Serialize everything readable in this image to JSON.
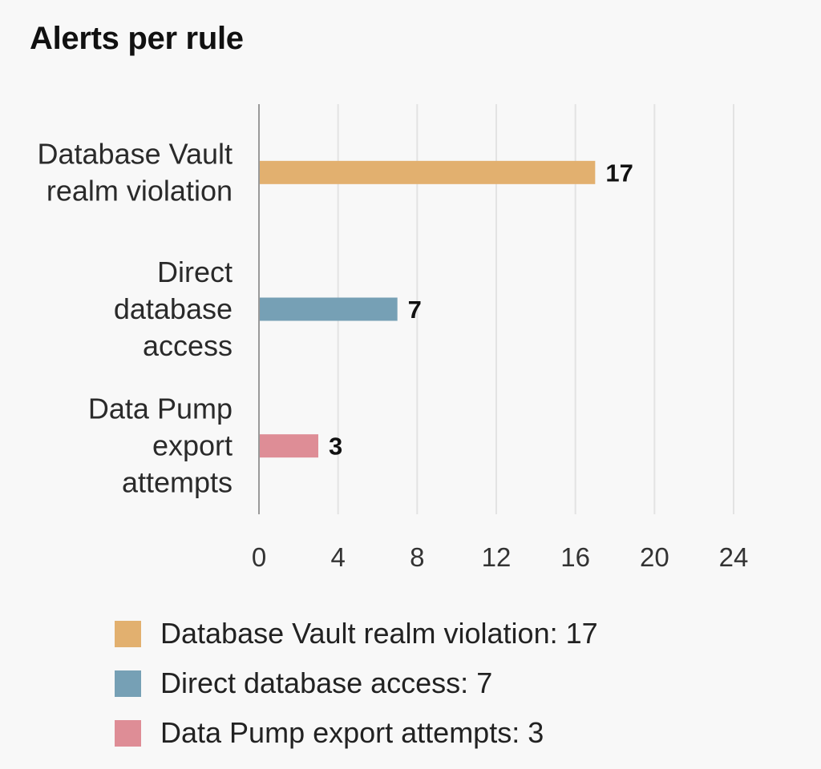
{
  "chart_data": {
    "type": "bar",
    "orientation": "horizontal",
    "title": "Alerts per rule",
    "categories": [
      "Database Vault realm violation",
      "Direct database access",
      "Data Pump export attempts"
    ],
    "category_label_lines": [
      [
        "Database Vault",
        "realm violation"
      ],
      [
        "Direct",
        "database",
        "access"
      ],
      [
        "Data Pump",
        "export",
        "attempts"
      ]
    ],
    "values": [
      17,
      7,
      3
    ],
    "data_labels": [
      "17",
      "7",
      "3"
    ],
    "colors": [
      "#e2b06f",
      "#76a0b5",
      "#de8d96"
    ],
    "xlim": [
      0,
      24
    ],
    "x_ticks": [
      0,
      4,
      8,
      12,
      16,
      20,
      24
    ],
    "x_tick_labels": [
      "0",
      "4",
      "8",
      "12",
      "16",
      "20",
      "24"
    ],
    "xlabel": "",
    "ylabel": "",
    "grid": true,
    "legend": {
      "placement": "bottom",
      "entries": [
        "Database Vault realm violation: 17",
        "Direct database access: 7",
        "Data Pump export attempts: 3"
      ]
    }
  }
}
